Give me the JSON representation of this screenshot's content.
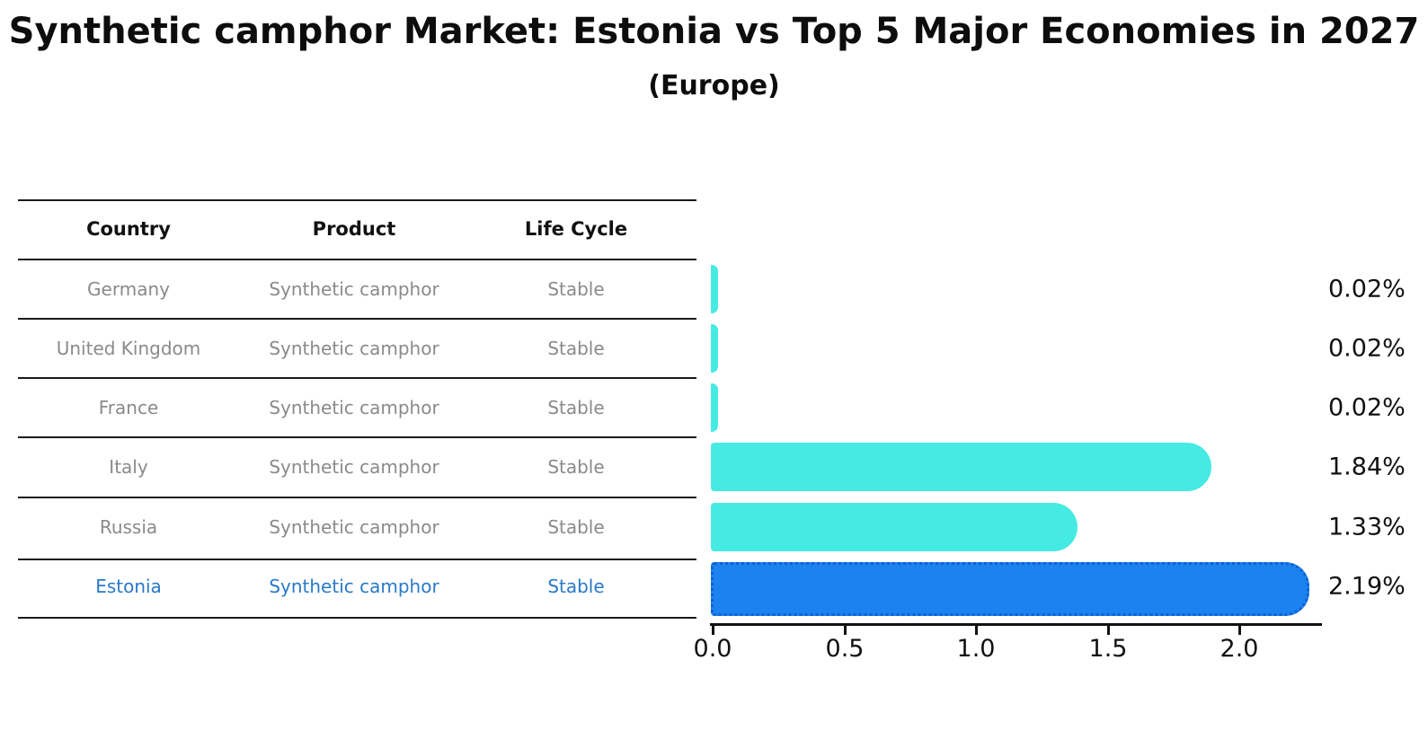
{
  "chart_data": {
    "type": "bar",
    "orientation": "horizontal",
    "title": "Synthetic camphor Market: Estonia vs Top 5 Major Economies in 2027",
    "subtitle": "(Europe)",
    "categories": [
      "Germany",
      "United Kingdom",
      "France",
      "Italy",
      "Russia",
      "Estonia"
    ],
    "values": [
      0.02,
      0.02,
      0.02,
      1.84,
      1.33,
      2.19
    ],
    "value_labels": [
      "0.02%",
      "0.02%",
      "0.02%",
      "1.84%",
      "1.33%",
      "2.19%"
    ],
    "highlight_index": 5,
    "xlim": [
      0,
      2.3
    ],
    "xticks": [
      "0.0",
      "0.5",
      "1.0",
      "1.5",
      "2.0"
    ],
    "xtick_values": [
      0.0,
      0.5,
      1.0,
      1.5,
      2.0
    ],
    "grid": false,
    "legend": "none"
  },
  "table": {
    "headers": [
      "Country",
      "Product",
      "Life Cycle"
    ],
    "rows": [
      {
        "cells": [
          "Germany",
          "Synthetic camphor",
          "Stable"
        ],
        "highlight": false
      },
      {
        "cells": [
          "United Kingdom",
          "Synthetic camphor",
          "Stable"
        ],
        "highlight": false
      },
      {
        "cells": [
          "France",
          "Synthetic camphor",
          "Stable"
        ],
        "highlight": false
      },
      {
        "cells": [
          "Italy",
          "Synthetic camphor",
          "Stable"
        ],
        "highlight": false
      },
      {
        "cells": [
          "Russia",
          "Synthetic camphor",
          "Stable"
        ],
        "highlight": false
      },
      {
        "cells": [
          "Estonia",
          "Synthetic camphor",
          "Stable"
        ],
        "highlight": true
      }
    ]
  },
  "colors": {
    "bar": "#45EBE2",
    "highlight_bar": "#1C82F0",
    "highlight_border": "#0C63D0",
    "highlight_text": "#2979C9",
    "row_text": "#8A8A8A",
    "header_text": "#111111",
    "axis": "#111111"
  }
}
